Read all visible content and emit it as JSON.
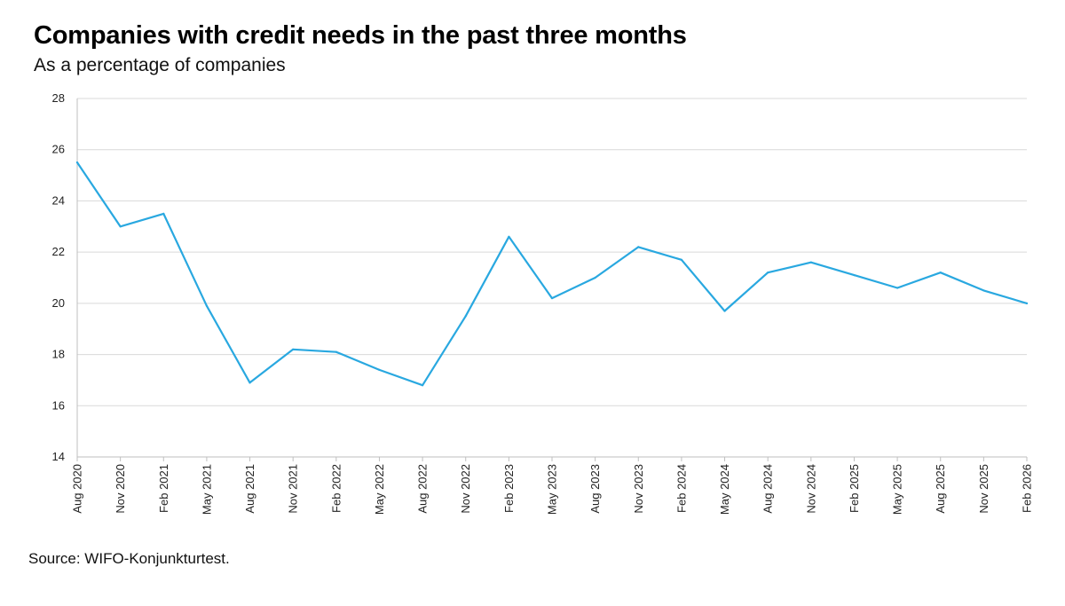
{
  "chart_data": {
    "type": "line",
    "title": "Companies with credit needs in the past three months",
    "subtitle": "As a percentage of companies",
    "xlabel": "",
    "ylabel": "",
    "ylim": [
      14,
      28
    ],
    "yticks": [
      14,
      16,
      18,
      20,
      22,
      24,
      26,
      28
    ],
    "grid": true,
    "legend": "none",
    "categories": [
      "Aug 2020",
      "Nov 2020",
      "Feb 2021",
      "May 2021",
      "Aug 2021",
      "Nov 2021",
      "Feb 2022",
      "May 2022",
      "Aug 2022",
      "Nov 2022",
      "Feb 2023",
      "May 2023",
      "Aug 2023",
      "Nov 2023",
      "Feb 2024",
      "May 2024",
      "Aug 2024",
      "Nov 2024",
      "Feb 2025",
      "May 2025",
      "Aug 2025",
      "Nov 2025",
      "Feb 2026"
    ],
    "series": [
      {
        "color": "#29a8e0",
        "values": [
          25.5,
          23.0,
          23.5,
          19.9,
          16.9,
          18.2,
          18.1,
          17.4,
          16.8,
          19.5,
          22.6,
          20.2,
          21.0,
          22.2,
          21.7,
          19.7,
          21.2,
          21.6,
          21.1,
          20.6,
          21.2,
          20.5,
          20.0
        ]
      }
    ]
  },
  "source": "Source: WIFO-Konjunkturtest."
}
